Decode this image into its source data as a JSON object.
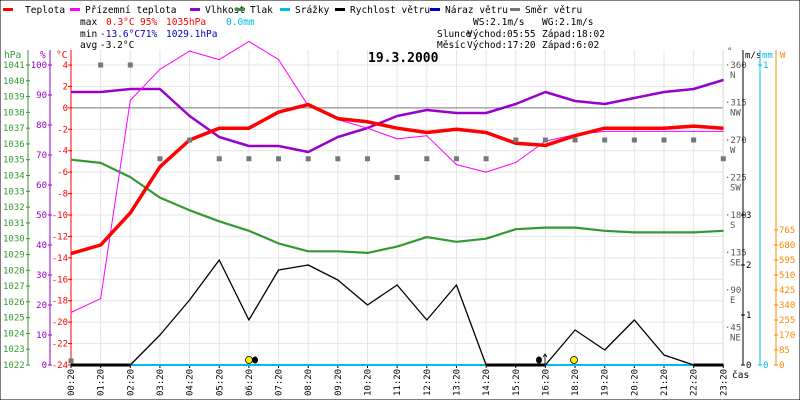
{
  "legend": [
    {
      "label": "Teplota",
      "color": "#ff0000"
    },
    {
      "label": "Přízemní teplota",
      "color": "#ff00ff"
    },
    {
      "label": "Vlhkost",
      "color": "#9900cc"
    },
    {
      "label": "Tlak",
      "color": "#339933"
    },
    {
      "label": "Srážky",
      "color": "#00bbee"
    },
    {
      "label": "Rychlost větru",
      "color": "#000000"
    },
    {
      "label": "Náraz větru",
      "color": "#0000cc"
    },
    {
      "label": "Směr větru",
      "color": "#777777"
    }
  ],
  "stats": {
    "max_label": "max",
    "max_temp": "0.3°C",
    "max_hum": "95%",
    "max_pres": "1035hPa",
    "max_rain": "0.0mm",
    "min_label": "min",
    "min_temp": "-13.6°C",
    "min_hum": "71%",
    "min_pres": "1029.1hPa",
    "avg_label": "avg",
    "avg_temp": "-3.2°C"
  },
  "info": {
    "ws": "WS:2.1m/s",
    "wg": "WG:2.1m/s",
    "sun_label": "Slunce",
    "sun_rise": "Východ:05:55",
    "sun_set": "Západ:18:02",
    "moon_label": "Měsíc",
    "moon_rise": "Východ:17:20",
    "moon_set": "Západ:6:02"
  },
  "chart_data": {
    "type": "line",
    "title": "19.3.2000",
    "xlabel": "čas",
    "x": [
      "00:20",
      "01:20",
      "02:20",
      "03:20",
      "04:20",
      "05:20",
      "06:20",
      "07:20",
      "08:20",
      "09:20",
      "10:20",
      "11:20",
      "12:20",
      "13:20",
      "14:20",
      "15:20",
      "16:20",
      "18:20",
      "19:20",
      "20:20",
      "21:20",
      "22:20",
      "23:20"
    ],
    "axes": {
      "pressure": {
        "unit": "hPa",
        "range": [
          1022,
          1041
        ],
        "ticks": [
          1022,
          1023,
          1024,
          1025,
          1026,
          1027,
          1028,
          1029,
          1030,
          1031,
          1032,
          1033,
          1034,
          1035,
          1036,
          1037,
          1038,
          1039,
          1040,
          1041
        ]
      },
      "humidity": {
        "unit": "%",
        "range": [
          0,
          100
        ],
        "ticks": [
          0,
          10,
          20,
          30,
          40,
          50,
          60,
          70,
          80,
          90,
          100
        ]
      },
      "temperature": {
        "unit": "°C",
        "range": [
          -24,
          4
        ],
        "ticks": [
          -24,
          -22,
          -20,
          -18,
          -16,
          -14,
          -12,
          -10,
          -8,
          -6,
          -4,
          -2,
          0,
          2,
          4
        ]
      },
      "direction": {
        "unit": "°",
        "range": [
          0,
          360
        ],
        "ticks": [
          {
            "v": 360,
            "c": "N"
          },
          {
            "v": 315,
            "c": "NW"
          },
          {
            "v": 270,
            "c": "W"
          },
          {
            "v": 225,
            "c": "SW"
          },
          {
            "v": 180,
            "c": "S"
          },
          {
            "v": 135,
            "c": "SE"
          },
          {
            "v": 90,
            "c": "E"
          },
          {
            "v": 45,
            "c": "NE"
          }
        ]
      },
      "wind": {
        "unit": "m/s",
        "range": [
          0,
          6
        ],
        "ticks": [
          0,
          1,
          2,
          3
        ]
      },
      "rain": {
        "unit": "mm",
        "range": [
          0,
          1
        ],
        "ticks": [
          0,
          1
        ]
      },
      "solar": {
        "unit": "W",
        "range": [
          0,
          1700
        ],
        "ticks": [
          0,
          85,
          170,
          255,
          340,
          425,
          510,
          595,
          680,
          765
        ]
      }
    },
    "series": [
      {
        "name": "Teplota",
        "axis": "temperature",
        "values": [
          -13.6,
          -12.8,
          -9.8,
          -5.5,
          -3.0,
          -1.9,
          -1.9,
          -0.4,
          0.3,
          -1.0,
          -1.3,
          -1.9,
          -2.3,
          -2.0,
          -2.3,
          -3.3,
          -3.5,
          -2.6,
          -1.9,
          -1.9,
          -1.9,
          -1.7,
          -1.9
        ]
      },
      {
        "name": "Přízemní teplota",
        "axis": "temperature",
        "values": [
          -19.1,
          -17.8,
          0.7,
          3.6,
          5.3,
          4.5,
          6.2,
          4.5,
          0.2,
          -1.1,
          -1.9,
          -2.9,
          -2.6,
          -5.3,
          -6.0,
          -5.1,
          -3.1,
          -2.5,
          -2.2,
          -2.2,
          -2.2,
          -2.2,
          -2.2
        ]
      },
      {
        "name": "Vlhkost",
        "axis": "humidity",
        "values": [
          91,
          91,
          92,
          92,
          83,
          76,
          73,
          73,
          71,
          76,
          79,
          83,
          85,
          84,
          84,
          87,
          91,
          88,
          87,
          89,
          91,
          92,
          95
        ]
      },
      {
        "name": "Tlak",
        "axis": "pressure",
        "values": [
          1035.0,
          1034.8,
          1033.9,
          1032.6,
          1031.8,
          1031.1,
          1030.5,
          1029.7,
          1029.2,
          1029.2,
          1029.1,
          1029.5,
          1030.1,
          1029.8,
          1030.0,
          1030.6,
          1030.7,
          1030.7,
          1030.5,
          1030.4,
          1030.4,
          1030.4,
          1030.5
        ]
      },
      {
        "name": "Srážky",
        "axis": "rain",
        "values": [
          0,
          0,
          0,
          0,
          0,
          0,
          0,
          0,
          0,
          0,
          0,
          0,
          0,
          0,
          0,
          0,
          0,
          0,
          0,
          0,
          0,
          0,
          0
        ]
      },
      {
        "name": "Rychlost větru",
        "axis": "wind",
        "values": [
          0,
          0,
          0,
          0.6,
          1.3,
          2.1,
          0.9,
          1.9,
          2.0,
          1.7,
          1.2,
          1.6,
          0.9,
          1.6,
          0,
          0,
          0,
          0.7,
          0.3,
          0.9,
          0.2,
          0,
          0
        ]
      },
      {
        "name": "Směr větru",
        "axis": "direction",
        "values": [
          5,
          360,
          360,
          247.5,
          270,
          247.5,
          247.5,
          247.5,
          247.5,
          247.5,
          247.5,
          225,
          247.5,
          247.5,
          247.5,
          270,
          270,
          270,
          270,
          270,
          270,
          270,
          247.5
        ]
      }
    ]
  }
}
